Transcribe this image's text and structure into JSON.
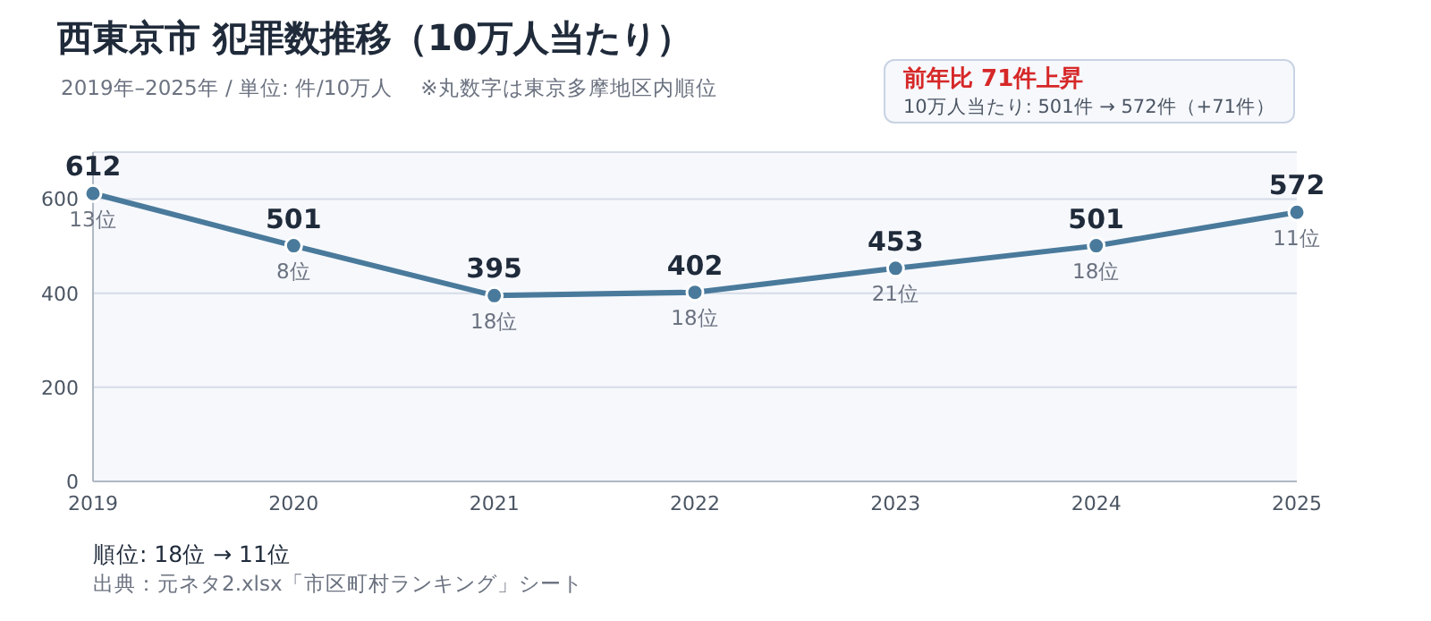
{
  "chart_data": {
    "type": "line",
    "title": "西東京市  犯罪数推移（10万人当たり）",
    "subtitle": "2019年–2025年 / 単位: 件/10万人　 ※丸数字は東京多摩地区内順位",
    "categories": [
      "2019",
      "2020",
      "2021",
      "2022",
      "2023",
      "2024",
      "2025"
    ],
    "series": [
      {
        "color": "#4a7a9b",
        "values": [
          612,
          501,
          395,
          402,
          453,
          501,
          572
        ]
      }
    ],
    "ylim": [
      0,
      700
    ],
    "yticks": [
      0,
      200,
      400,
      600
    ],
    "grid": "y",
    "marker": "circle",
    "line_style": "solid",
    "data_labels": true,
    "annotations": [
      "前年比  71件上昇",
      "10万人当たり: 501件 → 572件（+71件）",
      "順位: 18位 → 11位",
      "出典：元ネタ2.xlsx「市区町村ランキング」シート",
      {
        "text": "13位",
        "x": "2019",
        "y": 612
      },
      {
        "text": "8位",
        "x": "2020",
        "y": 501
      },
      {
        "text": "18位",
        "x": "2021",
        "y": 395
      },
      {
        "text": "18位",
        "x": "2022",
        "y": 402
      },
      {
        "text": "21位",
        "x": "2023",
        "y": 453
      },
      {
        "text": "18位",
        "x": "2024",
        "y": 501
      },
      {
        "text": "11位",
        "x": "2025",
        "y": 572
      }
    ]
  }
}
